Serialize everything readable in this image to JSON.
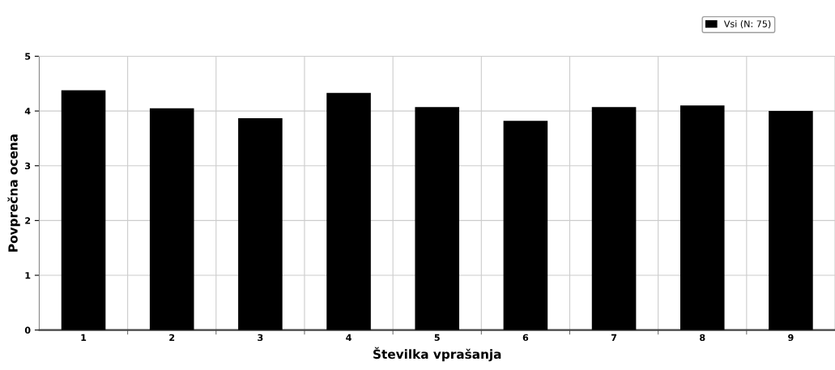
{
  "chart_data": {
    "type": "bar",
    "xlabel": "Številka vprašanja",
    "ylabel": "Povprečna ocena",
    "categories": [
      "1",
      "2",
      "3",
      "4",
      "5",
      "6",
      "7",
      "8",
      "9"
    ],
    "series": [
      {
        "name": "Vsi (N: 75)",
        "color": "#000000",
        "values": [
          4.38,
          4.05,
          3.87,
          4.33,
          4.07,
          3.82,
          4.07,
          4.1,
          4.0
        ]
      }
    ],
    "ylim": [
      0,
      5
    ],
    "yticks": [
      0,
      1,
      2,
      3,
      4,
      5
    ],
    "grid": true,
    "legend": "top right"
  }
}
